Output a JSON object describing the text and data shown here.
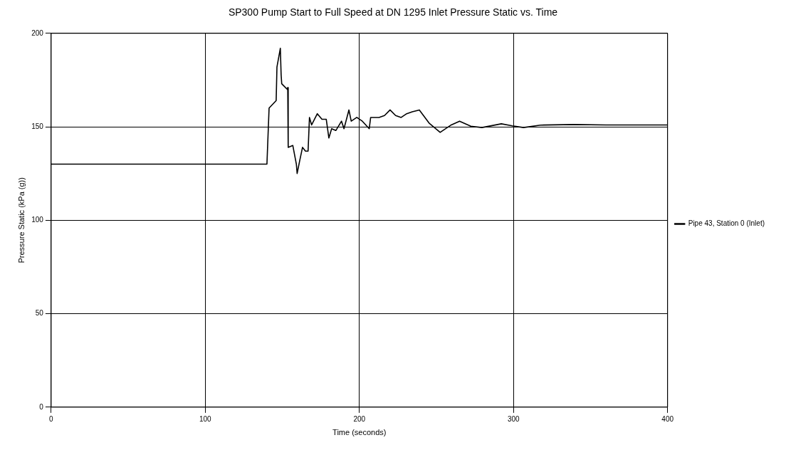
{
  "chart_data": {
    "type": "line",
    "title": "SP300 Pump Start to Full Speed at DN 1295 Inlet Pressure Static vs. Time",
    "xlabel": "Time (seconds)",
    "ylabel": "Pressure Static (kPa (g))",
    "xlim": [
      0,
      400
    ],
    "xticks": [
      0,
      100,
      200,
      300,
      400
    ],
    "ylim": [
      0,
      200
    ],
    "yticks": [
      0,
      50,
      100,
      150,
      200
    ],
    "grid": true,
    "legend": "right",
    "marker": "none",
    "line_style": "solid",
    "series": [
      {
        "name": "Pipe 43, Station 0 (Inlet)",
        "color": "#000000",
        "x": [
          0,
          140,
          141.4,
          146,
          146.5,
          148.7,
          149.2,
          149.6,
          153.2,
          153.5,
          153.8,
          156.8,
          159.1,
          159.6,
          161.3,
          163.1,
          165,
          166.7,
          167.6,
          169,
          172.7,
          175.7,
          178.5,
          180.2,
          182,
          184.7,
          188.4,
          190,
          193.2,
          194.7,
          198.3,
          201.9,
          206.4,
          207.3,
          212.7,
          216.3,
          219.9,
          223.5,
          227.1,
          230.7,
          234.3,
          238.9,
          245.2,
          252.4,
          259.6,
          265,
          272.3,
          279.5,
          292.1,
          299.3,
          306.5,
          317.4,
          339,
          360,
          380,
          400
        ],
        "values": [
          130,
          130,
          160,
          164,
          182,
          192,
          178,
          173,
          170,
          171,
          139,
          140,
          130,
          125,
          132,
          139,
          137,
          137,
          155,
          151,
          157,
          154,
          154,
          144,
          149,
          148,
          153,
          149,
          159,
          153,
          155,
          153,
          149,
          155,
          155,
          156,
          159,
          156,
          155,
          157,
          158,
          159,
          152,
          147,
          151,
          153,
          150.3,
          149.6,
          151.6,
          150.5,
          149.6,
          150.9,
          151.2,
          151,
          151,
          151
        ]
      }
    ]
  }
}
